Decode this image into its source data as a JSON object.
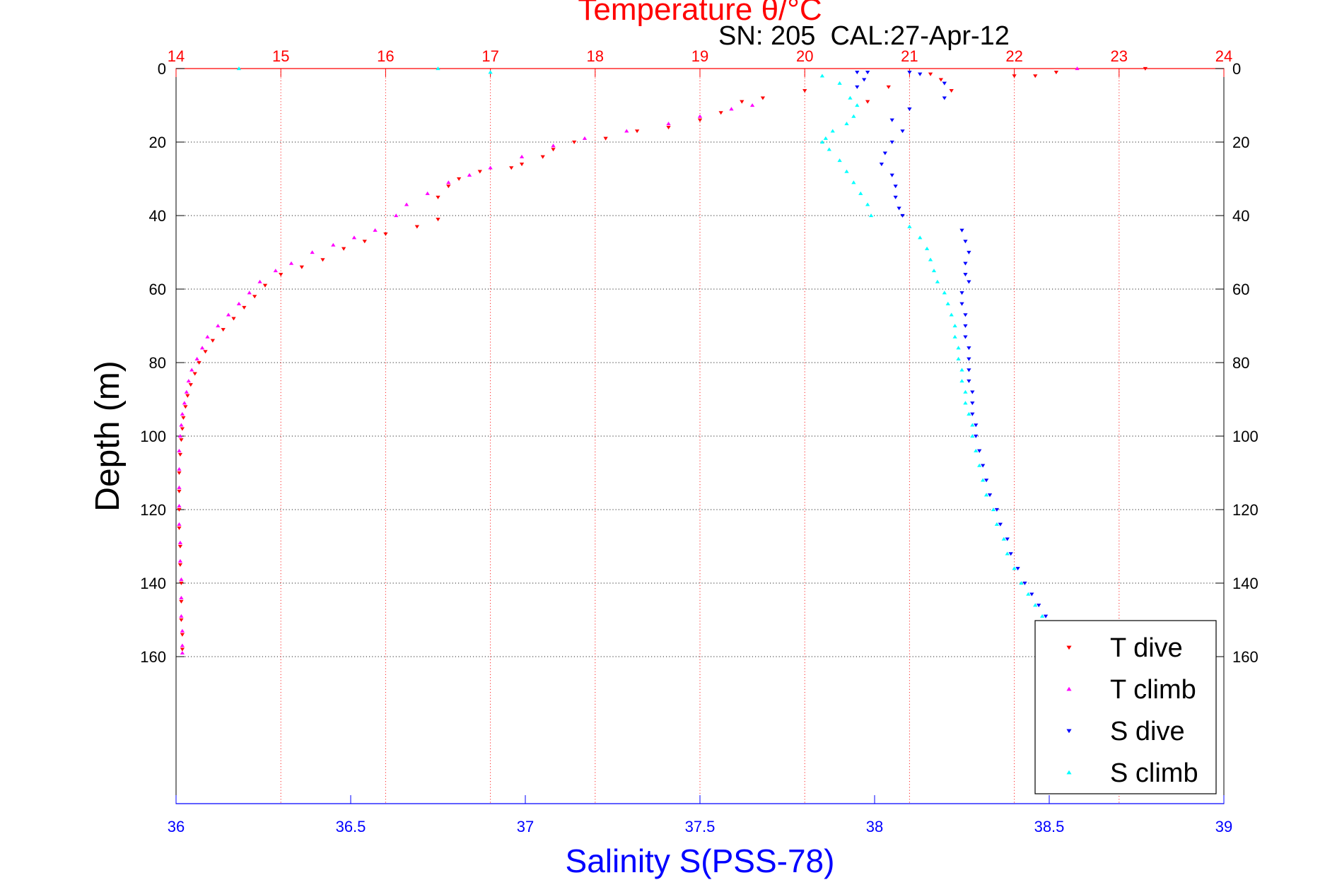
{
  "chart_data": {
    "type": "scatter",
    "title_top": "Temperature θ/°C",
    "subtitle": "SN: 205  CAL:27-Apr-12",
    "ylabel": "Depth (m)",
    "xlabel_bottom": "Salinity S(PSS-78)",
    "ylim": [
      0,
      200
    ],
    "y_reversed": true,
    "y_ticks": [
      "0",
      "20",
      "40",
      "60",
      "80",
      "100",
      "120",
      "140",
      "160"
    ],
    "y_tick_values": [
      0,
      20,
      40,
      60,
      80,
      100,
      120,
      140,
      160
    ],
    "x_top": {
      "label": "Temperature θ/°C",
      "lim": [
        14,
        24
      ],
      "ticks": [
        "14",
        "15",
        "16",
        "17",
        "18",
        "19",
        "20",
        "21",
        "22",
        "23",
        "24"
      ],
      "color": "#ff0000"
    },
    "x_bottom": {
      "label": "Salinity S(PSS-78)",
      "lim": [
        36,
        39
      ],
      "ticks": [
        "36",
        "36.5",
        "37",
        "37.5",
        "38",
        "38.5",
        "39"
      ],
      "color": "#0000ff"
    },
    "grid": true,
    "legend_position": "bottom-right",
    "series": [
      {
        "name": "T dive",
        "axis": "top",
        "marker": "triangle-down",
        "color": "#ff0000",
        "points": [
          [
            23.25,
            0
          ],
          [
            22.4,
            1
          ],
          [
            22.2,
            2
          ],
          [
            22.0,
            2
          ],
          [
            21.3,
            3
          ],
          [
            21.2,
            1.5
          ],
          [
            21.4,
            6
          ],
          [
            20.8,
            5
          ],
          [
            20.6,
            9
          ],
          [
            20.0,
            6
          ],
          [
            19.6,
            8
          ],
          [
            19.4,
            9
          ],
          [
            19.2,
            12
          ],
          [
            19.0,
            14
          ],
          [
            18.7,
            16
          ],
          [
            18.4,
            17
          ],
          [
            18.1,
            19
          ],
          [
            17.8,
            20
          ],
          [
            17.6,
            22
          ],
          [
            17.5,
            24
          ],
          [
            17.3,
            26
          ],
          [
            17.2,
            27
          ],
          [
            16.9,
            28
          ],
          [
            16.7,
            30
          ],
          [
            16.6,
            32
          ],
          [
            16.5,
            35
          ],
          [
            16.5,
            41
          ],
          [
            16.3,
            43
          ],
          [
            16.0,
            45
          ],
          [
            15.8,
            47
          ],
          [
            15.6,
            49
          ],
          [
            15.4,
            52
          ],
          [
            15.2,
            54
          ],
          [
            15.0,
            56
          ],
          [
            14.85,
            59
          ],
          [
            14.75,
            62
          ],
          [
            14.65,
            65
          ],
          [
            14.55,
            68
          ],
          [
            14.45,
            71
          ],
          [
            14.35,
            74
          ],
          [
            14.28,
            77
          ],
          [
            14.22,
            80
          ],
          [
            14.18,
            83
          ],
          [
            14.14,
            86
          ],
          [
            14.11,
            89
          ],
          [
            14.09,
            92
          ],
          [
            14.07,
            95
          ],
          [
            14.06,
            98
          ],
          [
            14.05,
            101
          ],
          [
            14.04,
            105
          ],
          [
            14.03,
            110
          ],
          [
            14.03,
            115
          ],
          [
            14.03,
            120
          ],
          [
            14.03,
            125
          ],
          [
            14.04,
            130
          ],
          [
            14.04,
            135
          ],
          [
            14.05,
            140
          ],
          [
            14.05,
            145
          ],
          [
            14.05,
            150
          ],
          [
            14.06,
            154
          ],
          [
            14.06,
            158
          ]
        ]
      },
      {
        "name": "T climb",
        "axis": "top",
        "marker": "triangle-up",
        "color": "#ff00ff",
        "points": [
          [
            22.6,
            0
          ],
          [
            19.5,
            10
          ],
          [
            19.3,
            11
          ],
          [
            19.0,
            13
          ],
          [
            18.7,
            15
          ],
          [
            18.3,
            17
          ],
          [
            17.9,
            19
          ],
          [
            17.6,
            21
          ],
          [
            17.3,
            24
          ],
          [
            17.0,
            27
          ],
          [
            16.8,
            29
          ],
          [
            16.6,
            31
          ],
          [
            16.4,
            34
          ],
          [
            16.2,
            37
          ],
          [
            16.1,
            40
          ],
          [
            15.9,
            44
          ],
          [
            15.7,
            46
          ],
          [
            15.5,
            48
          ],
          [
            15.3,
            50
          ],
          [
            15.1,
            53
          ],
          [
            14.95,
            55
          ],
          [
            14.8,
            58
          ],
          [
            14.7,
            61
          ],
          [
            14.6,
            64
          ],
          [
            14.5,
            67
          ],
          [
            14.4,
            70
          ],
          [
            14.3,
            73
          ],
          [
            14.25,
            76
          ],
          [
            14.2,
            79
          ],
          [
            14.15,
            82
          ],
          [
            14.12,
            85
          ],
          [
            14.1,
            88
          ],
          [
            14.08,
            91
          ],
          [
            14.06,
            94
          ],
          [
            14.05,
            97
          ],
          [
            14.04,
            100
          ],
          [
            14.03,
            104
          ],
          [
            14.03,
            109
          ],
          [
            14.03,
            114
          ],
          [
            14.03,
            119
          ],
          [
            14.03,
            124
          ],
          [
            14.04,
            129
          ],
          [
            14.04,
            134
          ],
          [
            14.05,
            139
          ],
          [
            14.05,
            144
          ],
          [
            14.05,
            149
          ],
          [
            14.06,
            153
          ],
          [
            14.06,
            157
          ],
          [
            14.06,
            159
          ]
        ]
      },
      {
        "name": "S dive",
        "axis": "bottom",
        "marker": "triangle-down",
        "color": "#0000ff",
        "points": [
          [
            37.95,
            1
          ],
          [
            37.98,
            1
          ],
          [
            38.1,
            1
          ],
          [
            38.13,
            1.5
          ],
          [
            38.2,
            4
          ],
          [
            37.97,
            3
          ],
          [
            37.95,
            5
          ],
          [
            38.2,
            8
          ],
          [
            38.1,
            11
          ],
          [
            38.05,
            14
          ],
          [
            38.08,
            17
          ],
          [
            38.05,
            20
          ],
          [
            38.03,
            23
          ],
          [
            38.02,
            26
          ],
          [
            38.05,
            29
          ],
          [
            38.06,
            32
          ],
          [
            38.06,
            35
          ],
          [
            38.07,
            38
          ],
          [
            38.08,
            40
          ],
          [
            38.25,
            44
          ],
          [
            38.26,
            47
          ],
          [
            38.27,
            50
          ],
          [
            38.26,
            53
          ],
          [
            38.26,
            56
          ],
          [
            38.27,
            58
          ],
          [
            38.25,
            61
          ],
          [
            38.25,
            64
          ],
          [
            38.26,
            67
          ],
          [
            38.26,
            70
          ],
          [
            38.26,
            73
          ],
          [
            38.27,
            76
          ],
          [
            38.27,
            79
          ],
          [
            38.27,
            82
          ],
          [
            38.27,
            85
          ],
          [
            38.28,
            88
          ],
          [
            38.28,
            91
          ],
          [
            38.28,
            94
          ],
          [
            38.29,
            97
          ],
          [
            38.29,
            100
          ],
          [
            38.3,
            104
          ],
          [
            38.31,
            108
          ],
          [
            38.32,
            112
          ],
          [
            38.33,
            116
          ],
          [
            38.35,
            120
          ],
          [
            38.36,
            124
          ],
          [
            38.38,
            128
          ],
          [
            38.39,
            132
          ],
          [
            38.41,
            136
          ],
          [
            38.43,
            140
          ],
          [
            38.45,
            143
          ],
          [
            38.47,
            146
          ],
          [
            38.49,
            149
          ],
          [
            38.5,
            151
          ]
        ]
      },
      {
        "name": "S climb",
        "axis": "bottom",
        "marker": "triangle-up",
        "color": "#00ffff",
        "points": [
          [
            36.18,
            0
          ],
          [
            36.75,
            0
          ],
          [
            36.9,
            1
          ],
          [
            37.85,
            2
          ],
          [
            37.9,
            4
          ],
          [
            37.93,
            8
          ],
          [
            37.95,
            10
          ],
          [
            37.94,
            13
          ],
          [
            37.92,
            15
          ],
          [
            37.88,
            17
          ],
          [
            37.86,
            19
          ],
          [
            37.85,
            20
          ],
          [
            37.87,
            22
          ],
          [
            37.9,
            25
          ],
          [
            37.92,
            28
          ],
          [
            37.94,
            31
          ],
          [
            37.96,
            34
          ],
          [
            37.98,
            37
          ],
          [
            37.99,
            40
          ],
          [
            38.1,
            43
          ],
          [
            38.13,
            46
          ],
          [
            38.15,
            49
          ],
          [
            38.16,
            52
          ],
          [
            38.17,
            55
          ],
          [
            38.18,
            58
          ],
          [
            38.2,
            61
          ],
          [
            38.21,
            64
          ],
          [
            38.22,
            67
          ],
          [
            38.23,
            70
          ],
          [
            38.23,
            73
          ],
          [
            38.24,
            76
          ],
          [
            38.24,
            79
          ],
          [
            38.25,
            82
          ],
          [
            38.25,
            85
          ],
          [
            38.26,
            88
          ],
          [
            38.26,
            91
          ],
          [
            38.27,
            94
          ],
          [
            38.28,
            97
          ],
          [
            38.28,
            100
          ],
          [
            38.29,
            104
          ],
          [
            38.3,
            108
          ],
          [
            38.31,
            112
          ],
          [
            38.32,
            116
          ],
          [
            38.34,
            120
          ],
          [
            38.35,
            124
          ],
          [
            38.37,
            128
          ],
          [
            38.38,
            132
          ],
          [
            38.4,
            136
          ],
          [
            38.42,
            140
          ],
          [
            38.44,
            143
          ],
          [
            38.46,
            146
          ],
          [
            38.48,
            149
          ]
        ]
      }
    ]
  }
}
